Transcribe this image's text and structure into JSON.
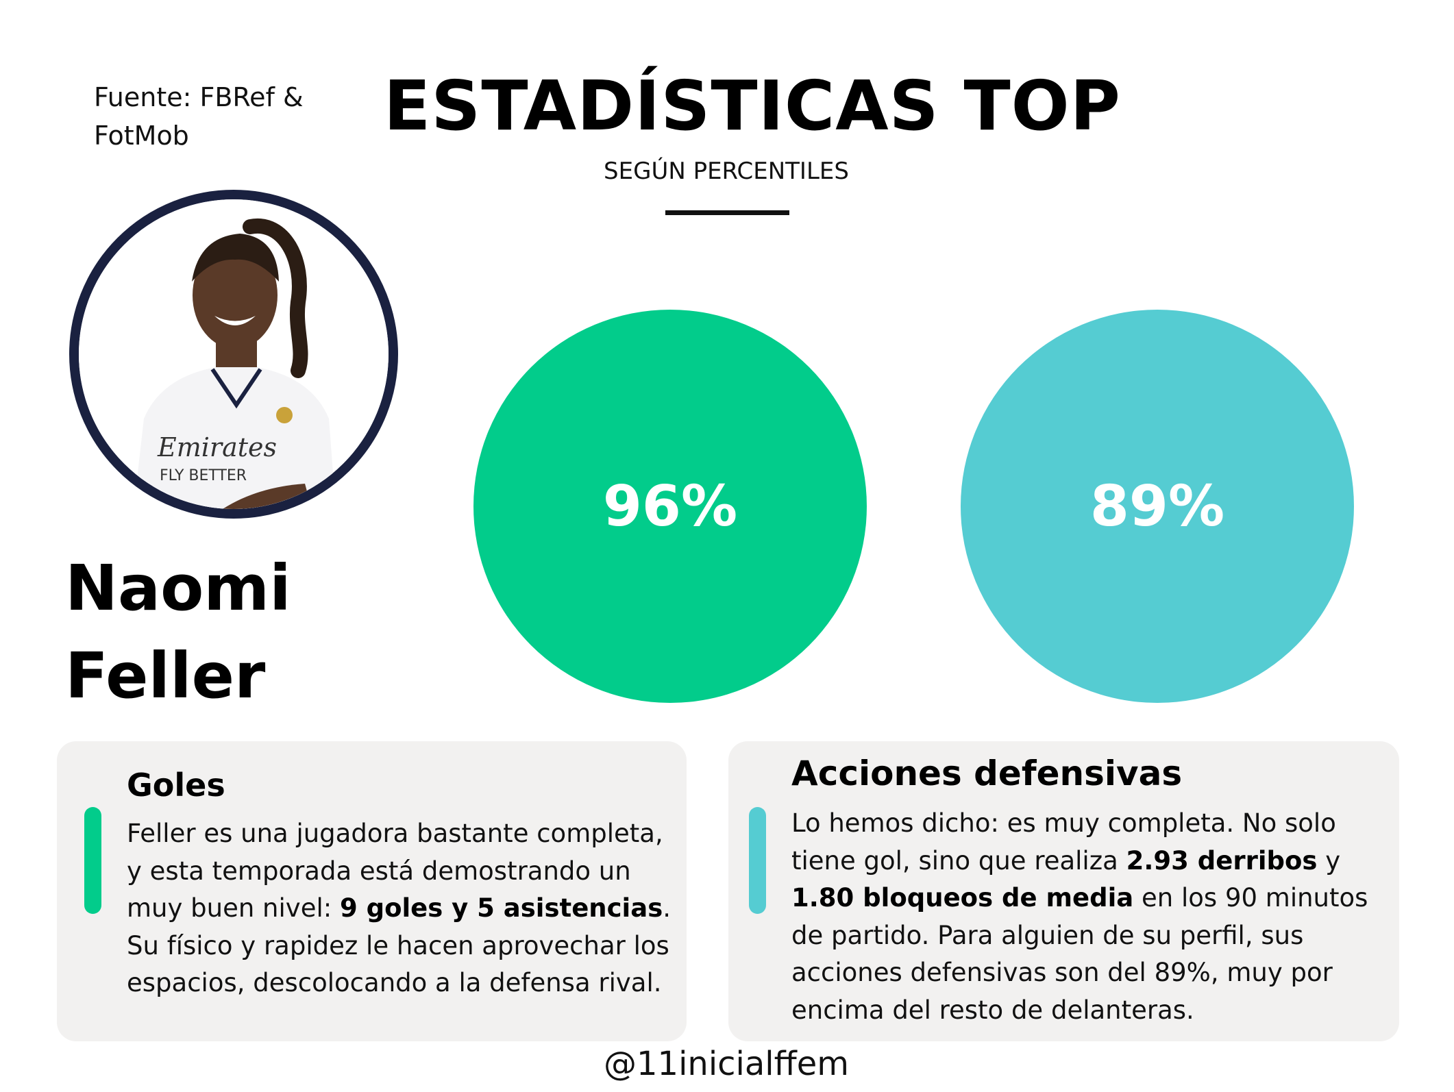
{
  "header": {
    "source": "Fuente: FBRef & FotMob",
    "title": "ESTADÍSTICAS TOP",
    "subtitle": "SEGÚN PERCENTILES"
  },
  "player": {
    "first_name": "Naomi",
    "last_name": "Feller",
    "avatar_icon": "player-photo-icon",
    "shirt_text_line1": "Emirates",
    "shirt_text_line2": "FLY BETTER"
  },
  "stats": [
    {
      "value": "96%",
      "percentile": 96,
      "color": "#02cc8b"
    },
    {
      "value": "89%",
      "percentile": 89,
      "color": "#55ccd2"
    }
  ],
  "cards": {
    "goals": {
      "title": "Goles",
      "text_1": "Feller es una jugadora bastante completa, y esta temporada está demostrando un muy buen nivel: ",
      "bold_1": "9 goles y 5 asistencias",
      "text_2": ". Su físico y rapidez le hacen aprovechar los espacios, descolocando a la defensa rival."
    },
    "defense": {
      "title": "Acciones defensivas",
      "text_1": "Lo hemos dicho: es muy completa. No solo tiene gol, sino que realiza ",
      "bold_1": "2.93 derribos",
      "text_2": " y ",
      "bold_2": "1.80 bloqueos de media",
      "text_3": " en los 90 minutos de partido. Para alguien de su perfil, sus acciones defensivas son del 89%, muy por encima del resto de delanteras."
    }
  },
  "footer": {
    "handle": "@11inicialffem"
  },
  "colors": {
    "green": "#02cc8b",
    "teal": "#55ccd2",
    "navy": "#1a2140",
    "card_bg": "#f2f1f0"
  }
}
